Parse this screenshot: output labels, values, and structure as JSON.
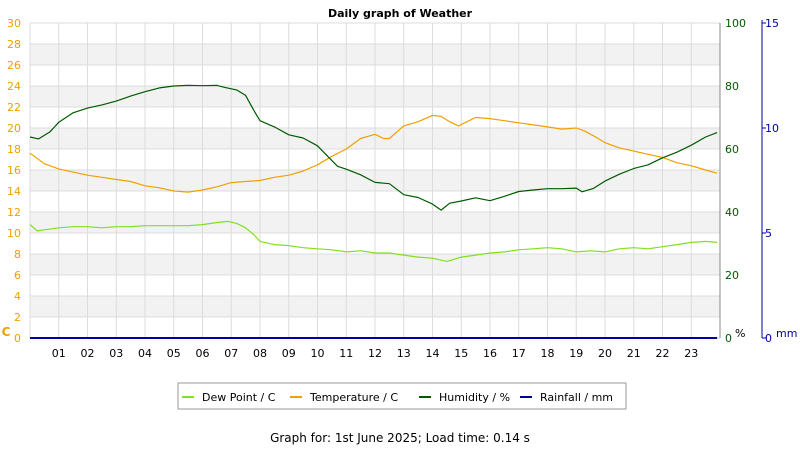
{
  "chart_data": {
    "type": "line",
    "title": "Daily graph of Weather",
    "x_ticks": [
      "01",
      "02",
      "03",
      "04",
      "05",
      "06",
      "07",
      "08",
      "09",
      "10",
      "11",
      "12",
      "13",
      "14",
      "15",
      "16",
      "17",
      "18",
      "19",
      "20",
      "21",
      "22",
      "23"
    ],
    "x_range": [
      0,
      24
    ],
    "left_axis": {
      "unit": "C",
      "range": [
        0,
        30
      ],
      "ticks": [
        0,
        2,
        4,
        6,
        8,
        10,
        12,
        14,
        16,
        18,
        20,
        22,
        24,
        26,
        28,
        30
      ],
      "color": "#f0a000"
    },
    "humidity_axis": {
      "unit": "%",
      "range": [
        0,
        100
      ],
      "ticks": [
        0,
        20,
        40,
        60,
        80,
        100
      ],
      "color": "#005a00"
    },
    "rain_axis": {
      "unit": "mm",
      "range": [
        0,
        15
      ],
      "ticks": [
        0,
        5,
        10,
        15
      ],
      "color": "#0000a0"
    },
    "grid": true,
    "legend_position": "bottom",
    "series": [
      {
        "name": "Dew Point / C",
        "axis": "temp",
        "color": "#80e020",
        "points": [
          [
            0,
            10.8
          ],
          [
            0.25,
            10.2
          ],
          [
            0.5,
            10.3
          ],
          [
            1,
            10.5
          ],
          [
            1.5,
            10.6
          ],
          [
            2,
            10.6
          ],
          [
            2.5,
            10.5
          ],
          [
            3,
            10.6
          ],
          [
            3.5,
            10.6
          ],
          [
            4,
            10.7
          ],
          [
            4.5,
            10.7
          ],
          [
            5,
            10.7
          ],
          [
            5.5,
            10.7
          ],
          [
            6,
            10.8
          ],
          [
            6.5,
            11.0
          ],
          [
            6.9,
            11.1
          ],
          [
            7.2,
            10.9
          ],
          [
            7.5,
            10.5
          ],
          [
            7.8,
            9.8
          ],
          [
            8.0,
            9.2
          ],
          [
            8.5,
            8.9
          ],
          [
            9,
            8.8
          ],
          [
            9.5,
            8.6
          ],
          [
            10,
            8.5
          ],
          [
            10.5,
            8.4
          ],
          [
            11,
            8.2
          ],
          [
            11.5,
            8.3
          ],
          [
            12,
            8.1
          ],
          [
            12.5,
            8.1
          ],
          [
            13,
            7.9
          ],
          [
            13.5,
            7.7
          ],
          [
            14,
            7.6
          ],
          [
            14.5,
            7.3
          ],
          [
            15,
            7.7
          ],
          [
            15.5,
            7.9
          ],
          [
            16,
            8.1
          ],
          [
            16.5,
            8.2
          ],
          [
            17,
            8.4
          ],
          [
            17.5,
            8.5
          ],
          [
            18,
            8.6
          ],
          [
            18.5,
            8.5
          ],
          [
            19,
            8.2
          ],
          [
            19.5,
            8.3
          ],
          [
            20,
            8.2
          ],
          [
            20.5,
            8.5
          ],
          [
            21,
            8.6
          ],
          [
            21.5,
            8.5
          ],
          [
            22,
            8.7
          ],
          [
            22.5,
            8.9
          ],
          [
            23,
            9.1
          ],
          [
            23.5,
            9.2
          ],
          [
            23.9,
            9.1
          ]
        ]
      },
      {
        "name": "Temperature / C",
        "axis": "temp",
        "color": "#f0a000",
        "points": [
          [
            0,
            17.6
          ],
          [
            0.5,
            16.6
          ],
          [
            1,
            16.1
          ],
          [
            1.5,
            15.8
          ],
          [
            2,
            15.5
          ],
          [
            2.5,
            15.3
          ],
          [
            3,
            15.1
          ],
          [
            3.5,
            14.9
          ],
          [
            4,
            14.5
          ],
          [
            4.5,
            14.3
          ],
          [
            5,
            14.0
          ],
          [
            5.5,
            13.9
          ],
          [
            6,
            14.1
          ],
          [
            6.5,
            14.4
          ],
          [
            7,
            14.8
          ],
          [
            7.5,
            14.9
          ],
          [
            8,
            15.0
          ],
          [
            8.5,
            15.3
          ],
          [
            9,
            15.5
          ],
          [
            9.5,
            15.9
          ],
          [
            10,
            16.5
          ],
          [
            10.5,
            17.3
          ],
          [
            11,
            18.0
          ],
          [
            11.5,
            19.0
          ],
          [
            12,
            19.4
          ],
          [
            12.3,
            19.0
          ],
          [
            12.5,
            19.0
          ],
          [
            13,
            20.2
          ],
          [
            13.5,
            20.6
          ],
          [
            14,
            21.2
          ],
          [
            14.3,
            21.1
          ],
          [
            14.6,
            20.6
          ],
          [
            14.9,
            20.2
          ],
          [
            15.2,
            20.6
          ],
          [
            15.5,
            21.0
          ],
          [
            16,
            20.9
          ],
          [
            16.5,
            20.7
          ],
          [
            17,
            20.5
          ],
          [
            17.5,
            20.3
          ],
          [
            18,
            20.1
          ],
          [
            18.5,
            19.9
          ],
          [
            19,
            20.0
          ],
          [
            19.3,
            19.7
          ],
          [
            19.7,
            19.1
          ],
          [
            20,
            18.6
          ],
          [
            20.5,
            18.1
          ],
          [
            21,
            17.8
          ],
          [
            21.5,
            17.5
          ],
          [
            22,
            17.2
          ],
          [
            22.5,
            16.7
          ],
          [
            23,
            16.4
          ],
          [
            23.5,
            16.0
          ],
          [
            23.9,
            15.7
          ]
        ]
      },
      {
        "name": "Humidity / %",
        "axis": "humidity",
        "color": "#005a00",
        "points": [
          [
            0,
            63.8
          ],
          [
            0.3,
            63.2
          ],
          [
            0.7,
            65.5
          ],
          [
            1,
            68.5
          ],
          [
            1.5,
            71.5
          ],
          [
            2,
            73.0
          ],
          [
            2.5,
            74.0
          ],
          [
            3,
            75.2
          ],
          [
            3.5,
            76.8
          ],
          [
            4,
            78.2
          ],
          [
            4.5,
            79.4
          ],
          [
            5,
            80.0
          ],
          [
            5.5,
            80.2
          ],
          [
            6,
            80.1
          ],
          [
            6.5,
            80.2
          ],
          [
            6.8,
            79.5
          ],
          [
            7.2,
            78.7
          ],
          [
            7.5,
            77.0
          ],
          [
            7.8,
            72.0
          ],
          [
            8.0,
            69.0
          ],
          [
            8.5,
            67.0
          ],
          [
            9,
            64.5
          ],
          [
            9.5,
            63.5
          ],
          [
            10,
            61.0
          ],
          [
            10.3,
            58.2
          ],
          [
            10.7,
            54.5
          ],
          [
            11,
            53.6
          ],
          [
            11.5,
            51.8
          ],
          [
            12,
            49.4
          ],
          [
            12.5,
            49.0
          ],
          [
            13,
            45.5
          ],
          [
            13.5,
            44.6
          ],
          [
            14,
            42.5
          ],
          [
            14.3,
            40.6
          ],
          [
            14.6,
            42.8
          ],
          [
            15,
            43.5
          ],
          [
            15.5,
            44.5
          ],
          [
            16,
            43.6
          ],
          [
            16.5,
            45.0
          ],
          [
            17,
            46.5
          ],
          [
            17.5,
            47.0
          ],
          [
            18,
            47.4
          ],
          [
            18.5,
            47.4
          ],
          [
            19,
            47.6
          ],
          [
            19.2,
            46.4
          ],
          [
            19.6,
            47.5
          ],
          [
            20,
            49.8
          ],
          [
            20.5,
            52.0
          ],
          [
            21,
            53.8
          ],
          [
            21.5,
            55.0
          ],
          [
            22,
            57.2
          ],
          [
            22.5,
            59.0
          ],
          [
            23,
            61.2
          ],
          [
            23.5,
            63.8
          ],
          [
            23.9,
            65.2
          ]
        ]
      },
      {
        "name": "Rainfall / mm",
        "axis": "rain",
        "color": "#0000a0",
        "points": [
          [
            0,
            0
          ],
          [
            23.9,
            0
          ]
        ]
      }
    ],
    "footer": "Graph for: 1st June 2025; Load time: 0.14 s"
  }
}
